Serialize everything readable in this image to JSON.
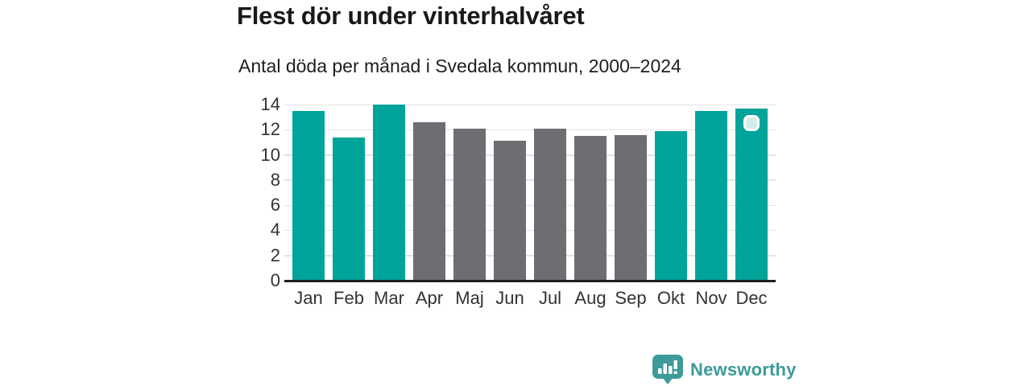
{
  "header": {
    "title": "Flest dör under vinterhalvåret",
    "subtitle": "Antal döda per månad i Svedala kommun, 2000–2024"
  },
  "chart_data": {
    "type": "bar",
    "categories": [
      "Jan",
      "Feb",
      "Mar",
      "Apr",
      "Maj",
      "Jun",
      "Jul",
      "Aug",
      "Sep",
      "Okt",
      "Nov",
      "Dec"
    ],
    "values": [
      13.5,
      11.4,
      14.0,
      12.6,
      12.1,
      11.1,
      12.1,
      11.5,
      11.6,
      11.9,
      13.5,
      13.7
    ],
    "highlighted": [
      true,
      true,
      true,
      false,
      false,
      false,
      false,
      false,
      false,
      true,
      true,
      true
    ],
    "title": "Flest dör under vinterhalvåret",
    "subtitle": "Antal döda per månad i Svedala kommun, 2000–2024",
    "xlabel": "",
    "ylabel": "",
    "ylim": [
      0,
      14
    ],
    "yticks": [
      0,
      2,
      4,
      6,
      8,
      10,
      12,
      14
    ],
    "grid": true,
    "legend_position": "none",
    "colors": {
      "highlight": "#00a49a",
      "muted": "#6d6d72"
    }
  },
  "marker": {
    "month_index": 11,
    "fill": "#d5ebe9",
    "border": "#ffffff"
  },
  "branding": {
    "name": "Newsworthy",
    "color": "#3d9b99",
    "icon": "newsworthy-logo-icon"
  }
}
